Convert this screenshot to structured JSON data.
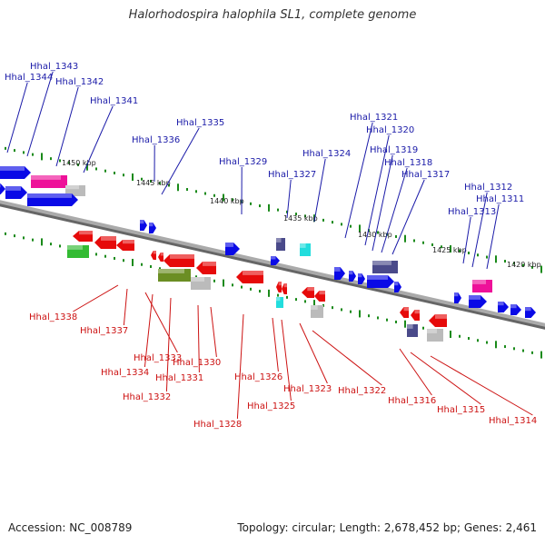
{
  "title": "Halorhodospira halophila SL1, complete genome",
  "footer": {
    "accession": "Accession: NC_008789",
    "topology": "Topology: circular; Length: 2,678,452 bp; Genes: 2,461"
  },
  "colors": {
    "backbone": "#888888",
    "forward_gene": "#0a0ae6",
    "reverse_gene": "#e60a0a",
    "forward_label": "#1a1aa8",
    "reverse_label": "#cc1111",
    "tick": "#1a8a1a",
    "magenta": "#ee1199",
    "cyan": "#22dddd",
    "green": "#33bb33",
    "olive": "#6b8e23",
    "grey": "#bbbbbb",
    "slate": "#4a4a8a"
  },
  "scale_labels": [
    "1450 kbp",
    "1445 kbp",
    "1440 kbp",
    "1435 kbp",
    "1430 kbp",
    "1425 kbp",
    "1420 kbp"
  ],
  "forward_labels": [
    "Hhal_1343",
    "Hhal_1344",
    "Hhal_1342",
    "Hhal_1341",
    "Hhal_1335",
    "Hhal_1336",
    "Hhal_1329",
    "Hhal_1327",
    "Hhal_1324",
    "Hhal_1321",
    "Hhal_1320",
    "Hhal_1319",
    "Hhal_1318",
    "Hhal_1317",
    "Hhal_1312",
    "Hhal_1311",
    "Hhal_1313"
  ],
  "reverse_labels": [
    "Hhal_1338",
    "Hhal_1337",
    "Hhal_1333",
    "Hhal_1334",
    "Hhal_1332",
    "Hhal_1331",
    "Hhal_1330",
    "Hhal_1328",
    "Hhal_1326",
    "Hhal_1325",
    "Hhal_1323",
    "Hhal_1322",
    "Hhal_1316",
    "Hhal_1315",
    "Hhal_1314"
  ]
}
